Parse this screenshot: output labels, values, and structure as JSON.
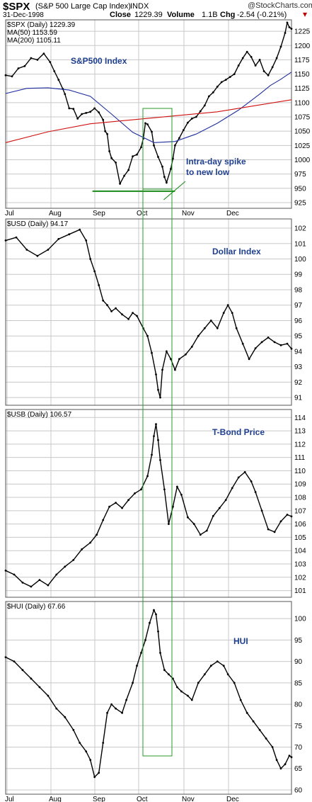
{
  "header": {
    "symbol": "$SPX",
    "full_name": "(S&P 500 Large Cap Index)",
    "exchange": "INDX",
    "date": "31-Dec-1998",
    "close_label": "Close",
    "close": "1229.39",
    "volume_label": "Volume",
    "volume": "1.1B",
    "chg_label": "Chg",
    "chg": "-2.54 (-0.21%)",
    "chg_arrow": "▾",
    "brand": "@StockCharts.com",
    "colors": {
      "down": "#c00000",
      "frame": "#555555",
      "grid": "#c8c8c8"
    }
  },
  "chart_data": [
    {
      "type": "line",
      "title": "$SPX (Daily) 1229.39",
      "annotation": "S&P500 Index",
      "legend": [
        {
          "name": "$SPX (Daily) 1229.39",
          "color": "#000000"
        },
        {
          "name": "MA(50) 1153.59",
          "color": "#1f2f9f"
        },
        {
          "name": "MA(200) 1105.11",
          "color": "#d01010"
        }
      ],
      "x_months": [
        "Jul",
        "Aug",
        "Sep",
        "Oct",
        "Nov",
        "Dec"
      ],
      "yticks": [
        925,
        950,
        975,
        1000,
        1025,
        1050,
        1075,
        1100,
        1125,
        1150,
        1175,
        1200,
        1225
      ],
      "ylim": [
        915,
        1245
      ],
      "series": [
        {
          "name": "$SPX (Daily) 1229.39",
          "points": [
            [
              0,
              1148
            ],
            [
              3,
              1146
            ],
            [
              6,
              1160
            ],
            [
              9,
              1164
            ],
            [
              12,
              1178
            ],
            [
              15,
              1175
            ],
            [
              18,
              1186
            ],
            [
              21,
              1171
            ],
            [
              23,
              1155
            ],
            [
              25,
              1140
            ],
            [
              27,
              1124
            ],
            [
              28,
              1115
            ],
            [
              30,
              1090
            ],
            [
              32,
              1089
            ],
            [
              34,
              1072
            ],
            [
              36,
              1080
            ],
            [
              38,
              1082
            ],
            [
              40,
              1084
            ],
            [
              42,
              1090
            ],
            [
              44,
              1083
            ],
            [
              46,
              1070
            ],
            [
              47,
              1050
            ],
            [
              48,
              1045
            ],
            [
              49,
              1015
            ],
            [
              50,
              1003
            ],
            [
              52,
              995
            ],
            [
              54,
              958
            ],
            [
              56,
              972
            ],
            [
              58,
              982
            ],
            [
              60,
              1006
            ],
            [
              62,
              1009
            ],
            [
              64,
              1022
            ],
            [
              65,
              1037
            ],
            [
              66,
              1064
            ],
            [
              67,
              1062
            ],
            [
              69,
              1049
            ],
            [
              70,
              1025
            ],
            [
              72,
              1005
            ],
            [
              74,
              988
            ],
            [
              75,
              970
            ],
            [
              76,
              960
            ],
            [
              78,
              984
            ],
            [
              79,
              1002
            ],
            [
              80,
              1025
            ],
            [
              82,
              1038
            ],
            [
              84,
              1052
            ],
            [
              86,
              1065
            ],
            [
              88,
              1072
            ],
            [
              90,
              1075
            ],
            [
              92,
              1085
            ],
            [
              94,
              1095
            ],
            [
              96,
              1111
            ],
            [
              98,
              1118
            ],
            [
              100,
              1128
            ],
            [
              102,
              1136
            ],
            [
              104,
              1140
            ],
            [
              106,
              1145
            ],
            [
              108,
              1150
            ],
            [
              110,
              1165
            ],
            [
              112,
              1178
            ],
            [
              114,
              1189
            ],
            [
              116,
              1180
            ],
            [
              118,
              1165
            ],
            [
              120,
              1175
            ],
            [
              122,
              1155
            ],
            [
              124,
              1148
            ],
            [
              126,
              1162
            ],
            [
              128,
              1178
            ],
            [
              130,
              1198
            ],
            [
              132,
              1222
            ],
            [
              133,
              1240
            ],
            [
              134,
              1232
            ],
            [
              135,
              1229.39
            ]
          ]
        },
        {
          "name": "MA(50) 1153.59",
          "points": [
            [
              0,
              1116
            ],
            [
              10,
              1125
            ],
            [
              20,
              1126
            ],
            [
              30,
              1122
            ],
            [
              40,
              1111
            ],
            [
              50,
              1080
            ],
            [
              60,
              1048
            ],
            [
              70,
              1030
            ],
            [
              80,
              1032
            ],
            [
              90,
              1045
            ],
            [
              100,
              1064
            ],
            [
              110,
              1087
            ],
            [
              120,
              1115
            ],
            [
              125,
              1130
            ],
            [
              130,
              1141
            ],
            [
              135,
              1153.59
            ]
          ]
        },
        {
          "name": "MA(200) 1105.11",
          "points": [
            [
              0,
              1030
            ],
            [
              20,
              1049
            ],
            [
              40,
              1063
            ],
            [
              60,
              1070
            ],
            [
              80,
              1077
            ],
            [
              100,
              1084
            ],
            [
              120,
              1096
            ],
            [
              135,
              1105.11
            ]
          ]
        }
      ],
      "support_line": {
        "y": 945,
        "x_start": 41,
        "x_end": 80
      },
      "spike_annotation": "Intra-day spike",
      "spike_annotation_2": "to new low",
      "spike_target": {
        "x": 74,
        "y": 925
      }
    },
    {
      "type": "line",
      "title": "$USD (Daily) 94.17",
      "annotation": "Dollar Index",
      "x_months": [
        "Jul",
        "Aug",
        "Sep",
        "Oct",
        "Nov",
        "Dec"
      ],
      "yticks": [
        91,
        92,
        93,
        94,
        95,
        96,
        97,
        98,
        99,
        100,
        101,
        102
      ],
      "ylim": [
        90.5,
        102.6
      ],
      "series": [
        {
          "name": "$USD (Daily) 94.17",
          "points": [
            [
              0,
              101.2
            ],
            [
              5,
              101.4
            ],
            [
              10,
              100.6
            ],
            [
              15,
              100.2
            ],
            [
              20,
              100.6
            ],
            [
              25,
              101.3
            ],
            [
              30,
              101.6
            ],
            [
              35,
              101.9
            ],
            [
              38,
              101.2
            ],
            [
              40,
              100.0
            ],
            [
              42,
              99.2
            ],
            [
              44,
              98.3
            ],
            [
              46,
              97.3
            ],
            [
              48,
              97.0
            ],
            [
              50,
              96.6
            ],
            [
              52,
              96.8
            ],
            [
              55,
              96.4
            ],
            [
              58,
              96.1
            ],
            [
              60,
              96.5
            ],
            [
              62,
              96.3
            ],
            [
              65,
              95.5
            ],
            [
              67,
              95.0
            ],
            [
              69,
              93.9
            ],
            [
              71,
              92.5
            ],
            [
              72,
              91.5
            ],
            [
              73,
              91.0
            ],
            [
              74,
              92.8
            ],
            [
              76,
              94.0
            ],
            [
              78,
              93.5
            ],
            [
              80,
              92.8
            ],
            [
              82,
              93.5
            ],
            [
              85,
              93.8
            ],
            [
              88,
              94.3
            ],
            [
              91,
              95.0
            ],
            [
              94,
              95.5
            ],
            [
              97,
              96.0
            ],
            [
              100,
              95.5
            ],
            [
              103,
              96.5
            ],
            [
              105,
              97.0
            ],
            [
              107,
              96.5
            ],
            [
              109,
              95.5
            ],
            [
              112,
              94.5
            ],
            [
              115,
              93.5
            ],
            [
              118,
              94.2
            ],
            [
              121,
              94.6
            ],
            [
              124,
              94.9
            ],
            [
              127,
              94.6
            ],
            [
              130,
              94.4
            ],
            [
              133,
              94.5
            ],
            [
              135,
              94.17
            ]
          ]
        }
      ]
    },
    {
      "type": "line",
      "title": "$USB (Daily) 106.57",
      "annotation": "T-Bond Price",
      "x_months": [
        "Jul",
        "Aug",
        "Sep",
        "Oct",
        "Nov",
        "Dec"
      ],
      "yticks": [
        101,
        102,
        103,
        104,
        105,
        106,
        107,
        108,
        109,
        110,
        111,
        112,
        113,
        114
      ],
      "ylim": [
        100.5,
        114.6
      ],
      "series": [
        {
          "name": "$USB (Daily) 106.57",
          "points": [
            [
              0,
              102.5
            ],
            [
              4,
              102.2
            ],
            [
              8,
              101.6
            ],
            [
              12,
              101.3
            ],
            [
              16,
              101.8
            ],
            [
              20,
              101.4
            ],
            [
              24,
              102.2
            ],
            [
              28,
              102.8
            ],
            [
              32,
              103.3
            ],
            [
              36,
              104.1
            ],
            [
              40,
              104.6
            ],
            [
              43,
              105.2
            ],
            [
              46,
              106.3
            ],
            [
              49,
              107.3
            ],
            [
              52,
              107.6
            ],
            [
              55,
              107.2
            ],
            [
              58,
              107.8
            ],
            [
              61,
              108.3
            ],
            [
              64,
              108.6
            ],
            [
              67,
              109.6
            ],
            [
              69,
              111.2
            ],
            [
              70,
              112.6
            ],
            [
              71,
              113.5
            ],
            [
              72,
              112.3
            ],
            [
              73,
              110.8
            ],
            [
              75,
              108.6
            ],
            [
              77,
              106.0
            ],
            [
              79,
              107.3
            ],
            [
              81,
              108.8
            ],
            [
              83,
              108.2
            ],
            [
              86,
              106.5
            ],
            [
              89,
              106.0
            ],
            [
              92,
              105.2
            ],
            [
              95,
              105.5
            ],
            [
              98,
              106.6
            ],
            [
              101,
              107.2
            ],
            [
              104,
              107.8
            ],
            [
              107,
              108.7
            ],
            [
              110,
              109.5
            ],
            [
              113,
              109.9
            ],
            [
              116,
              109.2
            ],
            [
              118,
              108.4
            ],
            [
              121,
              107.0
            ],
            [
              124,
              105.6
            ],
            [
              127,
              105.4
            ],
            [
              130,
              106.2
            ],
            [
              133,
              106.7
            ],
            [
              135,
              106.57
            ]
          ]
        }
      ]
    },
    {
      "type": "line",
      "title": "$HUI (Daily) 67.66",
      "annotation": "HUI",
      "x_months": [
        "Jul",
        "Aug",
        "Sep",
        "Oct",
        "Nov",
        "Dec"
      ],
      "yticks": [
        60,
        65,
        70,
        75,
        80,
        85,
        90,
        95,
        100
      ],
      "ylim": [
        59,
        104
      ],
      "series": [
        {
          "name": "$HUI (Daily) 67.66",
          "points": [
            [
              0,
              91
            ],
            [
              4,
              90
            ],
            [
              8,
              88
            ],
            [
              12,
              86
            ],
            [
              16,
              84
            ],
            [
              20,
              82
            ],
            [
              24,
              79
            ],
            [
              28,
              77
            ],
            [
              32,
              74
            ],
            [
              35,
              71
            ],
            [
              38,
              69
            ],
            [
              40,
              67
            ],
            [
              42,
              63
            ],
            [
              44,
              64
            ],
            [
              46,
              71
            ],
            [
              48,
              78
            ],
            [
              50,
              80
            ],
            [
              52,
              79
            ],
            [
              55,
              78
            ],
            [
              57,
              81
            ],
            [
              60,
              85
            ],
            [
              62,
              89
            ],
            [
              64,
              92
            ],
            [
              66,
              95
            ],
            [
              68,
              99
            ],
            [
              70,
              102
            ],
            [
              71,
              101
            ],
            [
              72,
              97
            ],
            [
              73,
              92
            ],
            [
              75,
              88
            ],
            [
              77,
              87
            ],
            [
              79,
              86
            ],
            [
              81,
              84
            ],
            [
              83,
              83
            ],
            [
              86,
              82
            ],
            [
              88,
              81
            ],
            [
              91,
              85
            ],
            [
              94,
              87
            ],
            [
              97,
              89
            ],
            [
              100,
              90
            ],
            [
              103,
              89
            ],
            [
              105,
              87
            ],
            [
              108,
              85
            ],
            [
              111,
              81
            ],
            [
              114,
              78
            ],
            [
              117,
              76
            ],
            [
              120,
              74
            ],
            [
              123,
              72
            ],
            [
              126,
              70
            ],
            [
              128,
              67
            ],
            [
              130,
              65
            ],
            [
              132,
              66
            ],
            [
              134,
              68
            ],
            [
              135,
              67.66
            ]
          ]
        }
      ]
    }
  ]
}
